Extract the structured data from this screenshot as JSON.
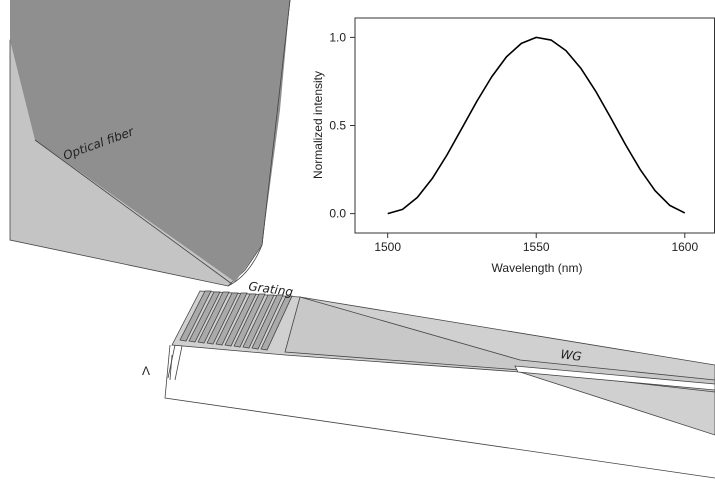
{
  "chart_data": {
    "type": "line",
    "x_label": "Wavelength (nm)",
    "y_label": "Normalized intensity",
    "x": [
      1500,
      1505,
      1510,
      1515,
      1520,
      1525,
      1530,
      1535,
      1540,
      1545,
      1550,
      1555,
      1560,
      1565,
      1570,
      1575,
      1580,
      1585,
      1590,
      1595,
      1600
    ],
    "series": [
      {
        "color": "#000000",
        "values": [
          0,
          0.024,
          0.092,
          0.199,
          0.334,
          0.485,
          0.637,
          0.776,
          0.89,
          0.966,
          1.0,
          0.985,
          0.925,
          0.825,
          0.695,
          0.546,
          0.393,
          0.25,
          0.13,
          0.046,
          0.004
        ]
      }
    ],
    "xlim": [
      1489,
      1610
    ],
    "ylim": [
      -0.11,
      1.11
    ],
    "xticks": [
      1500,
      1550,
      1600
    ],
    "yticks": [
      {
        "value": 0,
        "label": "0.0"
      },
      {
        "value": 0.5,
        "label": "0.5"
      },
      {
        "value": 1,
        "label": "1.0"
      }
    ]
  },
  "diagram": {
    "labels": {
      "fiber": "Optical fiber",
      "grating": "Grating",
      "waveguide": "WG",
      "period": "Λ"
    }
  }
}
